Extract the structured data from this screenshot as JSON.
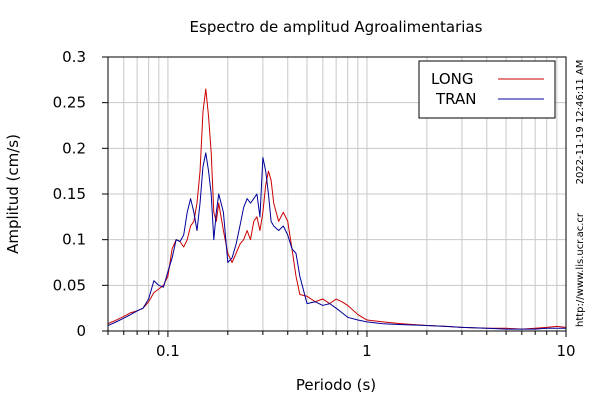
{
  "chart_data": {
    "type": "line",
    "title": "Espectro de amplitud Agroalimentarias",
    "xlabel": "Periodo (s)",
    "ylabel": "Amplitud (cm/s)",
    "x_scale": "log",
    "xlim": [
      0.05,
      10
    ],
    "ylim": [
      0,
      0.3
    ],
    "x_ticks": [
      {
        "value": 0.1,
        "label": "0.1"
      },
      {
        "value": 1,
        "label": "1"
      },
      {
        "value": 10,
        "label": "10"
      }
    ],
    "y_ticks": [
      {
        "value": 0,
        "label": "0"
      },
      {
        "value": 0.05,
        "label": "0.05"
      },
      {
        "value": 0.1,
        "label": "0.1"
      },
      {
        "value": 0.15,
        "label": "0.15"
      },
      {
        "value": 0.2,
        "label": "0.2"
      },
      {
        "value": 0.25,
        "label": "0.25"
      },
      {
        "value": 0.3,
        "label": "0.3"
      }
    ],
    "grid": true,
    "legend_position": "top-right",
    "series": [
      {
        "name": "LONG",
        "color": "#cc0000",
        "points": [
          [
            0.05,
            0.008
          ],
          [
            0.055,
            0.012
          ],
          [
            0.06,
            0.016
          ],
          [
            0.065,
            0.02
          ],
          [
            0.07,
            0.022
          ],
          [
            0.075,
            0.025
          ],
          [
            0.08,
            0.032
          ],
          [
            0.085,
            0.042
          ],
          [
            0.09,
            0.046
          ],
          [
            0.095,
            0.05
          ],
          [
            0.1,
            0.06
          ],
          [
            0.105,
            0.09
          ],
          [
            0.11,
            0.1
          ],
          [
            0.115,
            0.098
          ],
          [
            0.12,
            0.092
          ],
          [
            0.125,
            0.1
          ],
          [
            0.13,
            0.115
          ],
          [
            0.135,
            0.12
          ],
          [
            0.14,
            0.14
          ],
          [
            0.145,
            0.175
          ],
          [
            0.15,
            0.24
          ],
          [
            0.155,
            0.265
          ],
          [
            0.16,
            0.235
          ],
          [
            0.165,
            0.195
          ],
          [
            0.17,
            0.13
          ],
          [
            0.175,
            0.12
          ],
          [
            0.18,
            0.14
          ],
          [
            0.19,
            0.11
          ],
          [
            0.2,
            0.085
          ],
          [
            0.21,
            0.075
          ],
          [
            0.22,
            0.085
          ],
          [
            0.23,
            0.095
          ],
          [
            0.24,
            0.1
          ],
          [
            0.25,
            0.11
          ],
          [
            0.26,
            0.1
          ],
          [
            0.27,
            0.12
          ],
          [
            0.28,
            0.125
          ],
          [
            0.29,
            0.11
          ],
          [
            0.3,
            0.13
          ],
          [
            0.31,
            0.16
          ],
          [
            0.32,
            0.175
          ],
          [
            0.33,
            0.165
          ],
          [
            0.34,
            0.14
          ],
          [
            0.36,
            0.12
          ],
          [
            0.38,
            0.13
          ],
          [
            0.4,
            0.12
          ],
          [
            0.42,
            0.09
          ],
          [
            0.44,
            0.06
          ],
          [
            0.46,
            0.04
          ],
          [
            0.5,
            0.038
          ],
          [
            0.55,
            0.032
          ],
          [
            0.6,
            0.035
          ],
          [
            0.65,
            0.03
          ],
          [
            0.7,
            0.035
          ],
          [
            0.75,
            0.032
          ],
          [
            0.8,
            0.028
          ],
          [
            0.9,
            0.018
          ],
          [
            1.0,
            0.012
          ],
          [
            1.2,
            0.01
          ],
          [
            1.5,
            0.008
          ],
          [
            2.0,
            0.006
          ],
          [
            2.5,
            0.005
          ],
          [
            3.0,
            0.004
          ],
          [
            4.0,
            0.003
          ],
          [
            5.0,
            0.003
          ],
          [
            6.0,
            0.002
          ],
          [
            7.0,
            0.003
          ],
          [
            8.0,
            0.004
          ],
          [
            9.0,
            0.005
          ],
          [
            10.0,
            0.004
          ]
        ]
      },
      {
        "name": "TRAN",
        "color": "#000099",
        "points": [
          [
            0.05,
            0.006
          ],
          [
            0.055,
            0.01
          ],
          [
            0.06,
            0.014
          ],
          [
            0.065,
            0.018
          ],
          [
            0.07,
            0.022
          ],
          [
            0.075,
            0.025
          ],
          [
            0.08,
            0.035
          ],
          [
            0.085,
            0.055
          ],
          [
            0.09,
            0.05
          ],
          [
            0.095,
            0.048
          ],
          [
            0.1,
            0.065
          ],
          [
            0.105,
            0.08
          ],
          [
            0.11,
            0.1
          ],
          [
            0.115,
            0.098
          ],
          [
            0.12,
            0.105
          ],
          [
            0.125,
            0.13
          ],
          [
            0.13,
            0.145
          ],
          [
            0.135,
            0.13
          ],
          [
            0.14,
            0.11
          ],
          [
            0.145,
            0.14
          ],
          [
            0.15,
            0.18
          ],
          [
            0.155,
            0.195
          ],
          [
            0.16,
            0.175
          ],
          [
            0.165,
            0.15
          ],
          [
            0.17,
            0.1
          ],
          [
            0.175,
            0.13
          ],
          [
            0.18,
            0.15
          ],
          [
            0.19,
            0.13
          ],
          [
            0.2,
            0.075
          ],
          [
            0.21,
            0.08
          ],
          [
            0.22,
            0.095
          ],
          [
            0.23,
            0.115
          ],
          [
            0.24,
            0.135
          ],
          [
            0.25,
            0.145
          ],
          [
            0.26,
            0.14
          ],
          [
            0.27,
            0.145
          ],
          [
            0.28,
            0.15
          ],
          [
            0.29,
            0.125
          ],
          [
            0.3,
            0.19
          ],
          [
            0.31,
            0.175
          ],
          [
            0.32,
            0.15
          ],
          [
            0.33,
            0.12
          ],
          [
            0.34,
            0.115
          ],
          [
            0.36,
            0.11
          ],
          [
            0.38,
            0.115
          ],
          [
            0.4,
            0.105
          ],
          [
            0.42,
            0.09
          ],
          [
            0.44,
            0.085
          ],
          [
            0.46,
            0.06
          ],
          [
            0.5,
            0.03
          ],
          [
            0.55,
            0.032
          ],
          [
            0.6,
            0.028
          ],
          [
            0.65,
            0.03
          ],
          [
            0.7,
            0.025
          ],
          [
            0.75,
            0.02
          ],
          [
            0.8,
            0.015
          ],
          [
            0.9,
            0.012
          ],
          [
            1.0,
            0.01
          ],
          [
            1.2,
            0.008
          ],
          [
            1.5,
            0.007
          ],
          [
            2.0,
            0.006
          ],
          [
            2.5,
            0.005
          ],
          [
            3.0,
            0.004
          ],
          [
            4.0,
            0.003
          ],
          [
            5.0,
            0.002
          ],
          [
            6.0,
            0.002
          ],
          [
            7.0,
            0.002
          ],
          [
            8.0,
            0.003
          ],
          [
            9.0,
            0.003
          ],
          [
            10.0,
            0.003
          ]
        ]
      }
    ],
    "side_annotations": [
      "2022-11-19 12:46:11 AM",
      "http://www.lis.ucr.ac.cr"
    ]
  }
}
